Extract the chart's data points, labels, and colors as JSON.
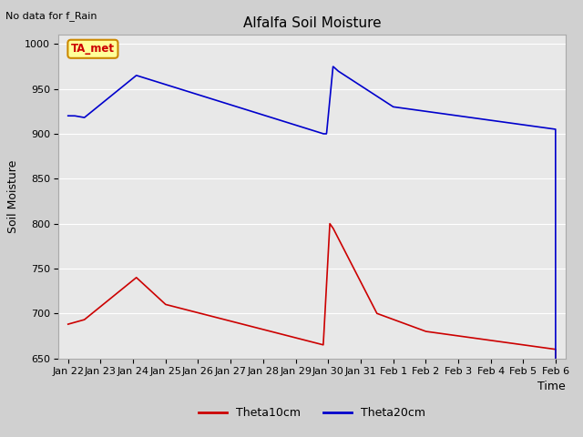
{
  "title": "Alfalfa Soil Moisture",
  "ylabel": "Soil Moisture",
  "xlabel": "Time",
  "top_label": "No data for f_Rain",
  "legend_label": "TA_met",
  "ylim": [
    650,
    1010
  ],
  "yticks": [
    650,
    700,
    750,
    800,
    850,
    900,
    950,
    1000
  ],
  "fig_bg_color": "#d0d0d0",
  "plot_bg_color": "#e8e8e8",
  "line1_color": "#cc0000",
  "line2_color": "#0000cc",
  "legend_box_facecolor": "#ffff99",
  "legend_box_edgecolor": "#cc8800",
  "tick_labels": [
    "Jan 22",
    "Jan 23",
    "Jan 24",
    "Jan 25",
    "Jan 26",
    "Jan 27",
    "Jan 28",
    "Jan 29",
    "Jan 30",
    "Jan 31",
    "Feb 1",
    "Feb 2",
    "Feb 3",
    "Feb 4",
    "Feb 5",
    "Feb 6"
  ],
  "grid_color": "#ffffff",
  "spine_color": "#aaaaaa"
}
